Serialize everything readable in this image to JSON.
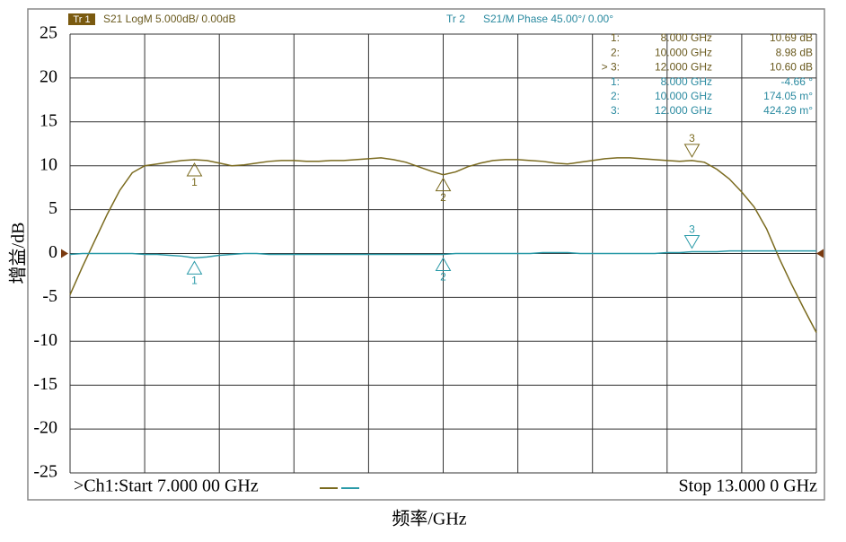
{
  "chart_data": {
    "type": "line",
    "trace_labels": [
      "Tr 1",
      "Tr 2"
    ],
    "y_label": "增益/dB",
    "x_label": "频率/GHz",
    "start_label": ">Ch1:Start 7.000 00 GHz",
    "stop_label": "Stop 13.000 0 GHz",
    "xlim": [
      7,
      13
    ],
    "ylim": [
      -25,
      25
    ],
    "yticks": [
      25,
      20,
      15,
      10,
      5,
      0,
      -5,
      -10,
      -15,
      -20,
      -25
    ],
    "grid": true,
    "x": [
      7.0,
      7.1,
      7.2,
      7.3,
      7.4,
      7.5,
      7.6,
      7.7,
      7.8,
      7.9,
      8.0,
      8.1,
      8.2,
      8.3,
      8.4,
      8.5,
      8.6,
      8.7,
      8.8,
      8.9,
      9.0,
      9.1,
      9.2,
      9.3,
      9.4,
      9.5,
      9.6,
      9.7,
      9.8,
      9.9,
      10.0,
      10.1,
      10.2,
      10.3,
      10.4,
      10.5,
      10.6,
      10.7,
      10.8,
      10.9,
      11.0,
      11.1,
      11.2,
      11.3,
      11.4,
      11.5,
      11.6,
      11.7,
      11.8,
      11.9,
      12.0,
      12.1,
      12.2,
      12.3,
      12.4,
      12.5,
      12.6,
      12.7,
      12.8,
      12.9,
      13.0
    ],
    "series": [
      {
        "name": "S21 LogM 5.000dB/ 0.00dB",
        "color": "#7a6a1e",
        "values": [
          -4.7,
          -1.5,
          1.5,
          4.5,
          7.2,
          9.2,
          10.0,
          10.2,
          10.4,
          10.6,
          10.69,
          10.6,
          10.3,
          10.0,
          10.1,
          10.3,
          10.5,
          10.6,
          10.6,
          10.5,
          10.5,
          10.6,
          10.6,
          10.7,
          10.8,
          10.9,
          10.7,
          10.4,
          9.9,
          9.4,
          8.98,
          9.3,
          9.9,
          10.3,
          10.6,
          10.7,
          10.7,
          10.6,
          10.5,
          10.3,
          10.2,
          10.4,
          10.6,
          10.8,
          10.9,
          10.9,
          10.8,
          10.7,
          10.6,
          10.5,
          10.6,
          10.4,
          9.6,
          8.5,
          7.0,
          5.3,
          2.8,
          -0.5,
          -3.5,
          -6.3,
          -9.0
        ],
        "markers": [
          {
            "label": "1",
            "x": 8,
            "y": 10.69
          },
          {
            "label": "2",
            "x": 10,
            "y": 8.98
          },
          {
            "label": "3",
            "x": 12,
            "y": 10.6
          }
        ]
      },
      {
        "name": "S21/M Phase 45.00°/ 0.00°",
        "color": "#2a9aa8",
        "values": [
          -0.1,
          0.0,
          0.0,
          0.0,
          0.0,
          0.0,
          -0.1,
          -0.1,
          -0.2,
          -0.3,
          -0.5,
          -0.4,
          -0.2,
          -0.1,
          0.0,
          0.0,
          -0.1,
          -0.1,
          -0.1,
          -0.1,
          -0.1,
          -0.1,
          -0.1,
          -0.1,
          -0.1,
          -0.1,
          -0.1,
          -0.1,
          -0.1,
          -0.1,
          -0.1,
          0.0,
          0.0,
          0.0,
          0.0,
          0.0,
          0.0,
          0.0,
          0.1,
          0.1,
          0.1,
          0.0,
          0.0,
          0.0,
          0.0,
          0.0,
          0.0,
          0.0,
          0.1,
          0.1,
          0.2,
          0.2,
          0.2,
          0.3,
          0.3,
          0.3,
          0.3,
          0.3,
          0.3,
          0.3,
          0.3
        ],
        "markers": [
          {
            "label": "1",
            "x": 8,
            "y": -0.5
          },
          {
            "label": "2",
            "x": 10,
            "y": -0.1
          },
          {
            "label": "3",
            "x": 12,
            "y": 0.2
          }
        ]
      }
    ],
    "marker_table": [
      [
        "1:",
        "8.000 GHz",
        "10.69 dB"
      ],
      [
        "2:",
        "10.000 GHz",
        "8.98 dB"
      ],
      [
        "> 3:",
        "12.000 GHz",
        "10.60 dB"
      ],
      [
        "1:",
        "8.000 GHz",
        "-4.66 °"
      ],
      [
        "2:",
        "10.000 GHz",
        "174.05 m°"
      ],
      [
        "3:",
        "12.000 GHz",
        "424.29 m°"
      ]
    ]
  }
}
